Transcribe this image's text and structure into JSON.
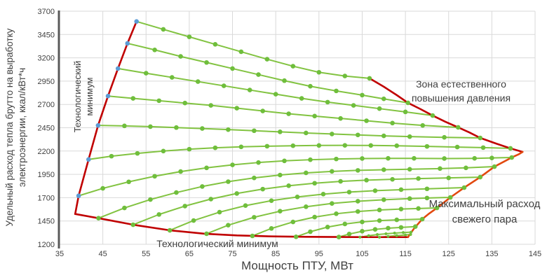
{
  "axis": {
    "x_label": "Мощность ПТУ, МВт",
    "y_label_line1": "Удельный расход тепла брутто на выработку",
    "y_label_line2": "электроэнергии, ккал/кВт*ч",
    "x_ticks": [
      35,
      45,
      55,
      65,
      75,
      85,
      95,
      105,
      115,
      125,
      135,
      145
    ],
    "y_ticks": [
      1200,
      1450,
      1700,
      1950,
      2200,
      2450,
      2700,
      2950,
      3200,
      3450,
      3700
    ],
    "x_range": [
      35,
      145
    ],
    "y_range": [
      1200,
      3700
    ],
    "grid": "on"
  },
  "annotations": {
    "tech_min_left": "Технологический минимум",
    "tech_min_bottom": "Технологический минимум",
    "zone_pressure": "Зона естественного повышения давления",
    "max_steam": "Максимальный расход свежего пара"
  },
  "colors": {
    "curve": "#82C341",
    "marker": "#6FBE3C",
    "start_marker": "#5B9BD5",
    "boundary_red": "#C00000",
    "boundary_orange": "#E2490F",
    "grid": "#D9D9D9",
    "axis_spine": "#595959",
    "text": "#404040"
  },
  "chart_data": {
    "type": "line",
    "title": "",
    "xlabel": "Мощность ПТУ, МВт",
    "ylabel": "Удельный расход тепла брутто на выработку электроэнергии, ккал/кВт*ч",
    "xlim": [
      35,
      145
    ],
    "ylim": [
      1200,
      3700
    ],
    "legend": "none",
    "series": [
      {
        "name": "regime-curve-1",
        "start_marker": "blue",
        "points": [
          [
            52.8,
            3590
          ],
          [
            59,
            3505
          ],
          [
            65,
            3425
          ],
          [
            71,
            3345
          ],
          [
            77,
            3265
          ],
          [
            83,
            3185
          ],
          [
            89,
            3110
          ],
          [
            95,
            3045
          ],
          [
            101,
            3005
          ],
          [
            106.7,
            2980
          ]
        ]
      },
      {
        "name": "regime-curve-2",
        "start_marker": "blue",
        "points": [
          [
            50.7,
            3355
          ],
          [
            57,
            3285
          ],
          [
            63,
            3215
          ],
          [
            69,
            3150
          ],
          [
            75,
            3085
          ],
          [
            81,
            3020
          ],
          [
            87,
            2955
          ],
          [
            93,
            2895
          ],
          [
            99,
            2845
          ],
          [
            105,
            2800
          ],
          [
            110,
            2760
          ],
          [
            115.6,
            2717
          ]
        ]
      },
      {
        "name": "regime-curve-3",
        "start_marker": "blue",
        "points": [
          [
            48.5,
            3085
          ],
          [
            55,
            3035
          ],
          [
            61,
            2990
          ],
          [
            67,
            2945
          ],
          [
            73,
            2900
          ],
          [
            79,
            2855
          ],
          [
            85,
            2810
          ],
          [
            91,
            2765
          ],
          [
            97,
            2725
          ],
          [
            103,
            2690
          ],
          [
            109,
            2655
          ],
          [
            115,
            2620
          ],
          [
            121.3,
            2581
          ]
        ]
      },
      {
        "name": "regime-curve-4",
        "start_marker": "blue",
        "points": [
          [
            46.2,
            2790
          ],
          [
            52,
            2765
          ],
          [
            58,
            2740
          ],
          [
            64,
            2715
          ],
          [
            70,
            2690
          ],
          [
            76,
            2660
          ],
          [
            82,
            2630
          ],
          [
            88,
            2600
          ],
          [
            94,
            2575
          ],
          [
            100,
            2550
          ],
          [
            106,
            2525
          ],
          [
            112,
            2500
          ],
          [
            119,
            2475
          ],
          [
            127.2,
            2454
          ]
        ]
      },
      {
        "name": "regime-curve-5",
        "start_marker": "blue",
        "points": [
          [
            43.9,
            2475
          ],
          [
            50,
            2470
          ],
          [
            56,
            2462
          ],
          [
            62,
            2452
          ],
          [
            68,
            2442
          ],
          [
            74,
            2430
          ],
          [
            80,
            2418
          ],
          [
            86,
            2406
          ],
          [
            92,
            2394
          ],
          [
            98,
            2383
          ],
          [
            104,
            2373
          ],
          [
            110,
            2363
          ],
          [
            116,
            2355
          ],
          [
            124,
            2347
          ],
          [
            132.3,
            2341
          ]
        ]
      },
      {
        "name": "regime-curve-6",
        "start_marker": "blue",
        "points": [
          [
            41.7,
            2110
          ],
          [
            47,
            2145
          ],
          [
            53,
            2175
          ],
          [
            59,
            2200
          ],
          [
            65,
            2220
          ],
          [
            71,
            2235
          ],
          [
            77,
            2245
          ],
          [
            83,
            2252
          ],
          [
            89,
            2257
          ],
          [
            95,
            2260
          ],
          [
            101,
            2261
          ],
          [
            107,
            2260
          ],
          [
            113,
            2257
          ],
          [
            120,
            2250
          ],
          [
            127,
            2243
          ],
          [
            133,
            2237
          ],
          [
            139.3,
            2229
          ]
        ]
      },
      {
        "name": "regime-curve-7",
        "start_marker": "blue",
        "points": [
          [
            39.4,
            1720
          ],
          [
            45,
            1800
          ],
          [
            51,
            1870
          ],
          [
            57,
            1930
          ],
          [
            63,
            1980
          ],
          [
            69,
            2020
          ],
          [
            75,
            2052
          ],
          [
            81,
            2077
          ],
          [
            87,
            2095
          ],
          [
            93,
            2107
          ],
          [
            99,
            2115
          ],
          [
            105,
            2120
          ],
          [
            111,
            2122
          ],
          [
            117,
            2122
          ],
          [
            124,
            2120
          ],
          [
            131,
            2122
          ],
          [
            135,
            2126
          ],
          [
            139.6,
            2131
          ]
        ]
      },
      {
        "name": "regime-curve-8",
        "points": [
          [
            44,
            1480
          ],
          [
            50,
            1590
          ],
          [
            56,
            1680
          ],
          [
            62,
            1755
          ],
          [
            68,
            1820
          ],
          [
            74,
            1872
          ],
          [
            80,
            1912
          ],
          [
            86,
            1943
          ],
          [
            92,
            1966
          ],
          [
            98,
            1982
          ],
          [
            104,
            1993
          ],
          [
            110,
            2000
          ],
          [
            116,
            2005
          ],
          [
            123,
            2012
          ],
          [
            129,
            2020
          ],
          [
            135.6,
            2033
          ]
        ]
      },
      {
        "name": "regime-curve-9",
        "points": [
          [
            52,
            1410
          ],
          [
            58,
            1520
          ],
          [
            64,
            1610
          ],
          [
            70,
            1685
          ],
          [
            76,
            1745
          ],
          [
            82,
            1792
          ],
          [
            88,
            1828
          ],
          [
            94,
            1855
          ],
          [
            100,
            1875
          ],
          [
            106,
            1888
          ],
          [
            112,
            1897
          ],
          [
            118,
            1905
          ],
          [
            125,
            1912
          ],
          [
            132.3,
            1920
          ]
        ]
      },
      {
        "name": "regime-curve-10",
        "points": [
          [
            60.5,
            1350
          ],
          [
            66,
            1455
          ],
          [
            72,
            1545
          ],
          [
            78,
            1615
          ],
          [
            84,
            1668
          ],
          [
            90,
            1708
          ],
          [
            96,
            1738
          ],
          [
            102,
            1760
          ],
          [
            108,
            1775
          ],
          [
            114,
            1786
          ],
          [
            120,
            1795
          ],
          [
            128.6,
            1808
          ]
        ]
      },
      {
        "name": "regime-curve-11",
        "points": [
          [
            69,
            1313
          ],
          [
            74,
            1405
          ],
          [
            80,
            1490
          ],
          [
            86,
            1555
          ],
          [
            92,
            1603
          ],
          [
            98,
            1638
          ],
          [
            104,
            1662
          ],
          [
            110,
            1678
          ],
          [
            116,
            1690
          ],
          [
            120,
            1696
          ],
          [
            125.4,
            1703
          ]
        ]
      },
      {
        "name": "regime-curve-12",
        "points": [
          [
            79.6,
            1290
          ],
          [
            84,
            1370
          ],
          [
            89,
            1440
          ],
          [
            94,
            1492
          ],
          [
            99,
            1528
          ],
          [
            104,
            1552
          ],
          [
            109,
            1568
          ],
          [
            114,
            1578
          ],
          [
            118,
            1584
          ],
          [
            122.3,
            1590
          ]
        ]
      },
      {
        "name": "regime-curve-13",
        "points": [
          [
            89.7,
            1280
          ],
          [
            93,
            1335
          ],
          [
            97,
            1385
          ],
          [
            101,
            1418
          ],
          [
            105,
            1440
          ],
          [
            109,
            1454
          ],
          [
            113,
            1462
          ],
          [
            118.9,
            1470
          ]
        ]
      },
      {
        "name": "regime-curve-14",
        "points": [
          [
            99.6,
            1278
          ],
          [
            102,
            1310
          ],
          [
            105,
            1340
          ],
          [
            108,
            1360
          ],
          [
            111,
            1373
          ],
          [
            114,
            1381
          ],
          [
            117.3,
            1390
          ]
        ]
      },
      {
        "name": "regime-curve-15",
        "small": true,
        "points": [
          [
            104.5,
            1277
          ],
          [
            106.5,
            1292
          ],
          [
            108.5,
            1304
          ],
          [
            110.5,
            1313
          ],
          [
            112.5,
            1320
          ],
          [
            114.5,
            1326
          ],
          [
            116.3,
            1330
          ]
        ]
      },
      {
        "name": "regime-curve-16",
        "small": true,
        "points": [
          [
            109,
            1276
          ],
          [
            111,
            1285
          ],
          [
            113,
            1293
          ],
          [
            115,
            1300
          ],
          [
            116.2,
            1305
          ]
        ]
      }
    ],
    "boundaries": [
      {
        "name": "tech-minimum-left-line",
        "color": "#C00000",
        "points": [
          [
            38.6,
            1525
          ],
          [
            39.4,
            1720
          ],
          [
            41.7,
            2110
          ],
          [
            43.9,
            2475
          ],
          [
            46.2,
            2790
          ],
          [
            48.5,
            3085
          ],
          [
            50.7,
            3355
          ],
          [
            52.8,
            3590
          ]
        ]
      },
      {
        "name": "tech-minimum-bottom-line",
        "color": "#C00000",
        "points": [
          [
            38.6,
            1525
          ],
          [
            44,
            1480
          ],
          [
            52,
            1410
          ],
          [
            60.5,
            1350
          ],
          [
            68.6,
            1313
          ],
          [
            76,
            1295
          ],
          [
            84,
            1285
          ],
          [
            92,
            1280
          ],
          [
            100,
            1278
          ],
          [
            108,
            1277
          ],
          [
            115.6,
            1277
          ]
        ]
      },
      {
        "name": "natural-pressure-rise-line",
        "color": "#C00000",
        "points": [
          [
            106.7,
            2980
          ],
          [
            110,
            2890
          ],
          [
            113,
            2800
          ],
          [
            115.6,
            2717
          ],
          [
            118.5,
            2650
          ],
          [
            121.3,
            2581
          ],
          [
            124.2,
            2515
          ],
          [
            127.2,
            2454
          ],
          [
            129.8,
            2400
          ],
          [
            132.3,
            2341
          ],
          [
            136,
            2280
          ],
          [
            139.3,
            2229
          ],
          [
            142.1,
            2191
          ]
        ]
      },
      {
        "name": "max-steam-flow-line",
        "color": "#E2490F",
        "points": [
          [
            115.6,
            1277
          ],
          [
            117,
            1370
          ],
          [
            118.9,
            1470
          ],
          [
            120.5,
            1530
          ],
          [
            122.3,
            1590
          ],
          [
            125.4,
            1703
          ],
          [
            128.6,
            1808
          ],
          [
            132.3,
            1920
          ],
          [
            135.6,
            2033
          ],
          [
            139.6,
            2131
          ],
          [
            141.2,
            2165
          ],
          [
            142.1,
            2191
          ]
        ]
      }
    ]
  }
}
